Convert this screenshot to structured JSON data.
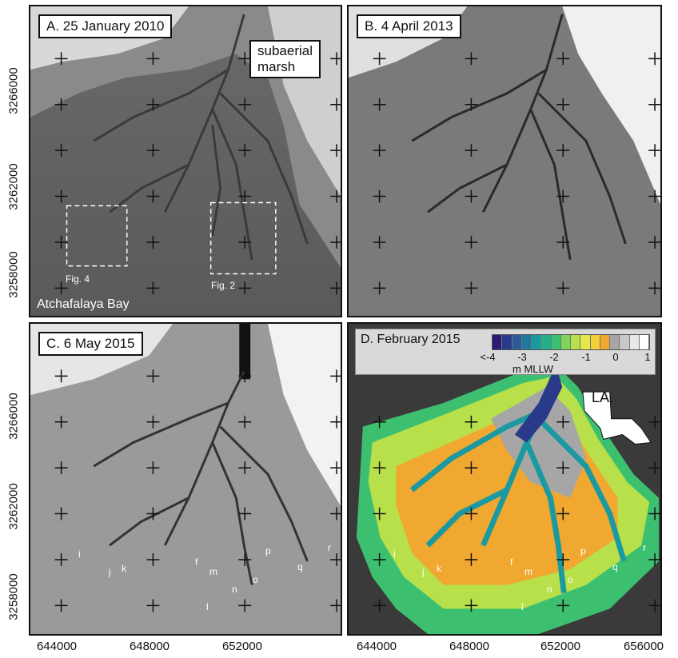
{
  "panels": {
    "a": {
      "title": "A. 25 January 2010",
      "callout_line1": "subaerial",
      "callout_line2": "marsh",
      "region": "Atchafalaya Bay",
      "fig4": "Fig. 4",
      "fig2": "Fig. 2"
    },
    "b": {
      "title": "B. 4 April 2013"
    },
    "c": {
      "title": "C. 6 May 2015"
    },
    "d": {
      "title": "D. February 2015",
      "unit": "m MLLW",
      "inset_label": "LA."
    }
  },
  "legend": {
    "ticks": [
      "<-4",
      "-3",
      "-2",
      "-1",
      "0",
      "1"
    ],
    "colors": [
      "#2b1b72",
      "#2a3a8a",
      "#2a5a9a",
      "#1f7a9e",
      "#1a9aa0",
      "#22b08a",
      "#3cc070",
      "#7ed45a",
      "#b8e04a",
      "#e6e648",
      "#f2d23a",
      "#f0a830",
      "#a6a6a6",
      "#c8c8c8",
      "#e8e8e8",
      "#ffffff"
    ]
  },
  "axes": {
    "y_ticks_top": [
      "3266000",
      "3262000",
      "3258000"
    ],
    "y_ticks_bottom": [
      "3266000",
      "3262000",
      "3258000"
    ],
    "x_ticks_left": [
      "644000",
      "648000",
      "652000"
    ],
    "x_ticks_right": [
      "644000",
      "648000",
      "652000",
      "656000"
    ]
  },
  "point_labels_c": [
    "i",
    "j",
    "k",
    "f",
    "m",
    "l",
    "n",
    "o",
    "p",
    "q",
    "r"
  ],
  "point_labels_d": [
    "i",
    "j",
    "k",
    "f",
    "m",
    "l",
    "n",
    "o",
    "p",
    "q",
    "r"
  ]
}
